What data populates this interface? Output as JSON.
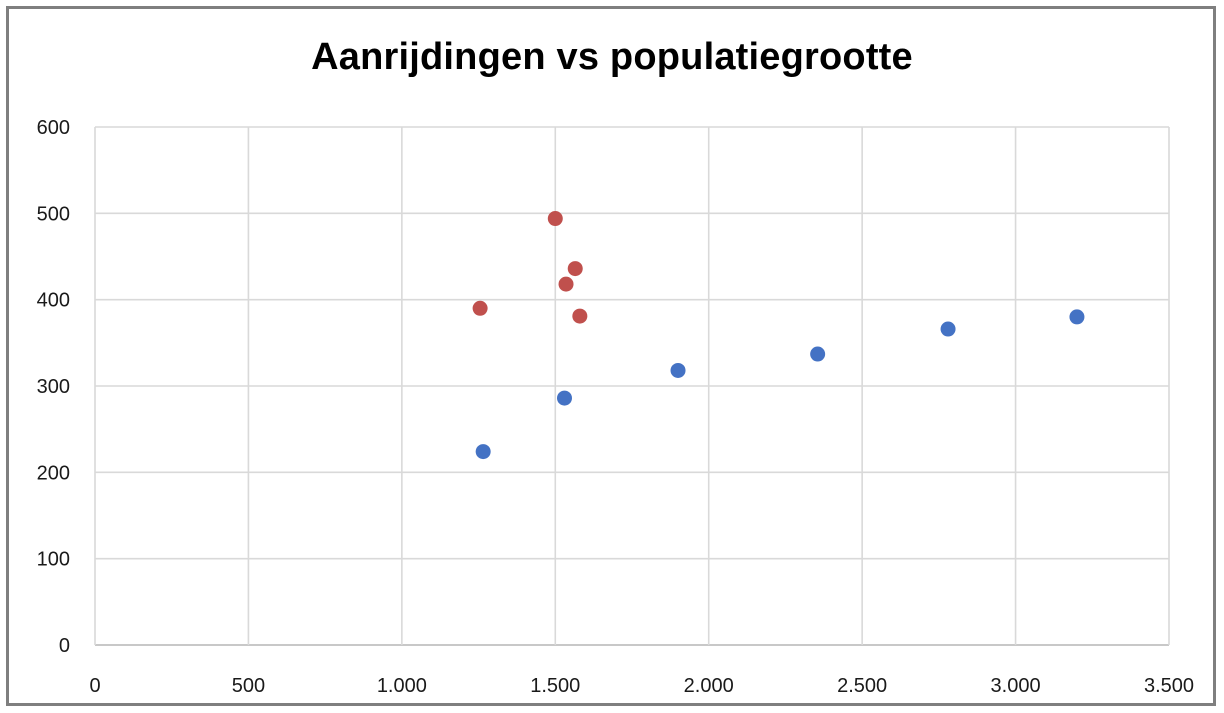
{
  "chart_data": {
    "type": "scatter",
    "title": "Aanrijdingen vs populatiegrootte",
    "xlabel": "",
    "ylabel": "",
    "xlim": [
      0,
      3500
    ],
    "ylim": [
      0,
      600
    ],
    "x_ticks": [
      0,
      500,
      1000,
      1500,
      2000,
      2500,
      3000,
      3500
    ],
    "x_tick_labels": [
      "0",
      "500",
      "1.000",
      "1.500",
      "2.000",
      "2.500",
      "3.000",
      "3.500"
    ],
    "y_ticks": [
      0,
      100,
      200,
      300,
      400,
      500,
      600
    ],
    "y_tick_labels": [
      "0",
      "100",
      "200",
      "300",
      "400",
      "500",
      "600"
    ],
    "grid": true,
    "legend": "none",
    "series": [
      {
        "color": "#4472c4",
        "points": [
          {
            "x": 1265,
            "y": 224
          },
          {
            "x": 1530,
            "y": 286
          },
          {
            "x": 1900,
            "y": 318
          },
          {
            "x": 2355,
            "y": 337
          },
          {
            "x": 2780,
            "y": 366
          },
          {
            "x": 3200,
            "y": 380
          }
        ]
      },
      {
        "color": "#c0504d",
        "points": [
          {
            "x": 1255,
            "y": 390
          },
          {
            "x": 1500,
            "y": 494
          },
          {
            "x": 1535,
            "y": 418
          },
          {
            "x": 1565,
            "y": 436
          },
          {
            "x": 1580,
            "y": 381
          }
        ]
      }
    ]
  }
}
